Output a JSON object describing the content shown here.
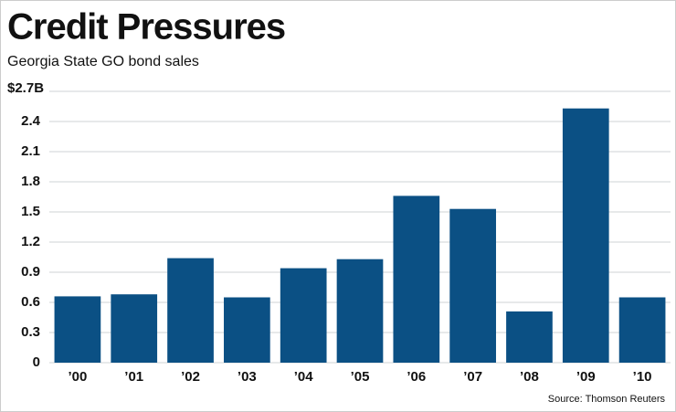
{
  "chart_data": {
    "type": "bar",
    "title": "Credit Pressures",
    "subtitle": "Georgia State GO bond sales",
    "source": "Source: Thomson Reuters",
    "categories": [
      "’00",
      "’01",
      "’02",
      "’03",
      "’04",
      "’05",
      "’06",
      "’07",
      "’08",
      "’09",
      "’10"
    ],
    "values": [
      0.66,
      0.68,
      1.04,
      0.65,
      0.94,
      1.03,
      1.66,
      1.53,
      0.51,
      2.53,
      0.65
    ],
    "color": "#0b5084",
    "ylim": [
      0,
      2.7
    ],
    "yticks": [
      0,
      0.3,
      0.6,
      0.9,
      1.2,
      1.5,
      1.8,
      2.1,
      2.4,
      {
        "value": 2.7,
        "label": "$2.7B"
      }
    ],
    "grid": true
  }
}
